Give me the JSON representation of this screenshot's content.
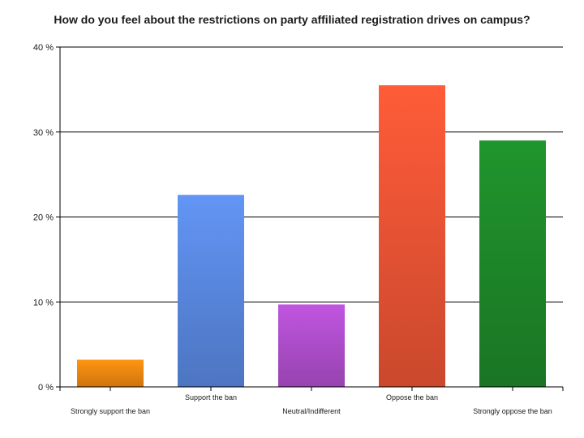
{
  "chart_data": {
    "type": "bar",
    "title": "How do you feel about the restrictions on party affiliated registration drives on campus?",
    "categories": [
      "Strongly support the ban",
      "Support the ban",
      "Neutral/Indifferent",
      "Oppose the ban",
      "Strongly oppose the ban"
    ],
    "values": [
      3.2,
      22.6,
      9.7,
      35.5,
      29.0
    ],
    "colors": [
      "#f28a10",
      "#5b8ae3",
      "#b24fcf",
      "#ee5535",
      "#1e8a2a"
    ],
    "ylim": [
      0,
      40
    ],
    "yticks": [
      0,
      10,
      20,
      30,
      40
    ],
    "ytick_labels": [
      "0 %",
      "10 %",
      "20 %",
      "30 %",
      "40 %"
    ],
    "grid": true,
    "xlabel": "",
    "ylabel": ""
  }
}
